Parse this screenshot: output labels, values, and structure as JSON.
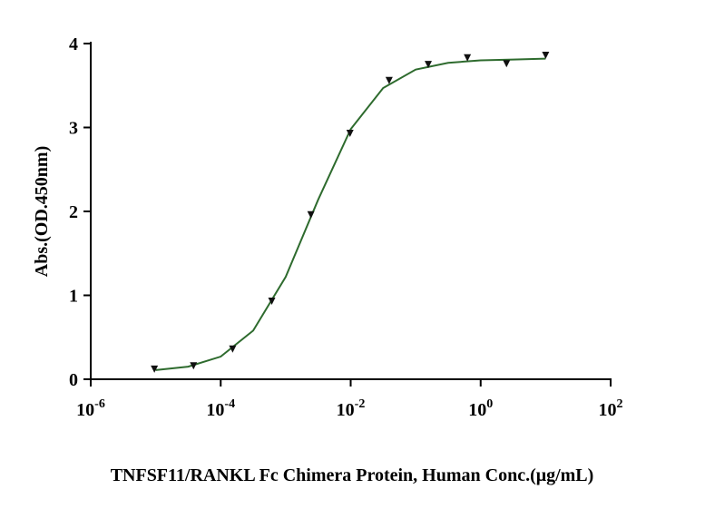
{
  "chart_data": {
    "type": "scatter",
    "xlabel": "TNFSF11/RANKL Fc Chimera Protein, Human  Conc.(μg/mL)",
    "ylabel": "Abs.(OD.450nm)",
    "x_log": true,
    "x": [
      9.5367e-06,
      3.8147e-05,
      0.00015259,
      0.00061035,
      0.0024414,
      0.0097656,
      0.0390625,
      0.15625,
      0.625,
      2.5,
      10
    ],
    "values": [
      0.12,
      0.16,
      0.36,
      0.93,
      1.96,
      2.93,
      3.56,
      3.75,
      3.83,
      3.76,
      3.86
    ],
    "color": "#111111",
    "fit_curve": {
      "color": "#2e6b2e",
      "x": [
        1e-05,
        3.16e-05,
        0.0001,
        0.000316,
        0.001,
        0.00316,
        0.01,
        0.0316,
        0.1,
        0.316,
        1,
        3.16,
        10
      ],
      "values": [
        0.11,
        0.15,
        0.27,
        0.58,
        1.22,
        2.14,
        2.98,
        3.47,
        3.69,
        3.77,
        3.8,
        3.81,
        3.82
      ]
    },
    "xlim": [
      1e-06,
      100
    ],
    "xticks": [
      {
        "value": 1e-06,
        "label": "10-6"
      },
      {
        "value": 0.0001,
        "label": "10-4"
      },
      {
        "value": 0.01,
        "label": "10-2"
      },
      {
        "value": 1,
        "label": "100"
      },
      {
        "value": 100,
        "label": "102"
      }
    ],
    "ylim": [
      0,
      4
    ],
    "yticks": [
      0,
      1,
      2,
      3,
      4
    ],
    "grid": false
  }
}
